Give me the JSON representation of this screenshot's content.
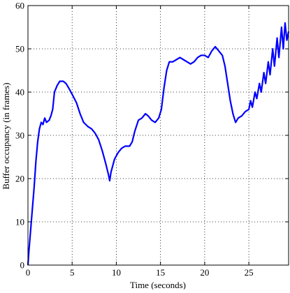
{
  "chart_data": {
    "type": "line",
    "title": "",
    "xlabel": "Time (seconds)",
    "ylabel": "Buffer occupancy (in frames)",
    "xlim": [
      0,
      29.5
    ],
    "ylim": [
      0,
      60
    ],
    "x_ticks": [
      0,
      5,
      10,
      15,
      20,
      25
    ],
    "y_ticks": [
      0,
      10,
      20,
      30,
      40,
      50,
      60
    ],
    "grid": true,
    "grid_style": "dotted",
    "series": [
      {
        "color": "#0000ff",
        "points": [
          [
            0.0,
            0.0
          ],
          [
            0.1,
            3.0
          ],
          [
            0.3,
            8.0
          ],
          [
            0.5,
            13.0
          ],
          [
            0.7,
            18.0
          ],
          [
            0.9,
            24.0
          ],
          [
            1.1,
            28.5
          ],
          [
            1.3,
            31.5
          ],
          [
            1.5,
            33.0
          ],
          [
            1.7,
            32.5
          ],
          [
            1.9,
            34.0
          ],
          [
            2.1,
            33.0
          ],
          [
            2.4,
            33.5
          ],
          [
            2.6,
            34.5
          ],
          [
            2.8,
            36.0
          ],
          [
            3.0,
            40.0
          ],
          [
            3.3,
            41.5
          ],
          [
            3.6,
            42.5
          ],
          [
            4.0,
            42.5
          ],
          [
            4.3,
            42.0
          ],
          [
            4.6,
            41.0
          ],
          [
            5.0,
            39.5
          ],
          [
            5.5,
            37.5
          ],
          [
            5.9,
            35.0
          ],
          [
            6.3,
            33.0
          ],
          [
            6.8,
            32.0
          ],
          [
            7.2,
            31.5
          ],
          [
            7.6,
            30.5
          ],
          [
            8.0,
            29.0
          ],
          [
            8.4,
            26.5
          ],
          [
            8.8,
            23.5
          ],
          [
            9.1,
            21.0
          ],
          [
            9.25,
            19.5
          ],
          [
            9.4,
            21.5
          ],
          [
            9.8,
            24.5
          ],
          [
            10.2,
            26.0
          ],
          [
            10.6,
            27.0
          ],
          [
            11.0,
            27.5
          ],
          [
            11.5,
            27.5
          ],
          [
            11.8,
            28.5
          ],
          [
            12.1,
            31.0
          ],
          [
            12.5,
            33.5
          ],
          [
            12.9,
            34.0
          ],
          [
            13.3,
            35.0
          ],
          [
            13.6,
            34.5
          ],
          [
            14.0,
            33.5
          ],
          [
            14.4,
            33.0
          ],
          [
            14.8,
            34.0
          ],
          [
            15.1,
            36.0
          ],
          [
            15.4,
            41.0
          ],
          [
            15.7,
            45.0
          ],
          [
            16.0,
            47.0
          ],
          [
            16.4,
            47.0
          ],
          [
            16.8,
            47.5
          ],
          [
            17.2,
            48.0
          ],
          [
            17.6,
            47.5
          ],
          [
            18.0,
            47.0
          ],
          [
            18.4,
            46.5
          ],
          [
            18.8,
            47.0
          ],
          [
            19.2,
            48.0
          ],
          [
            19.6,
            48.5
          ],
          [
            20.0,
            48.5
          ],
          [
            20.4,
            48.0
          ],
          [
            20.8,
            49.5
          ],
          [
            21.2,
            50.5
          ],
          [
            21.6,
            49.5
          ],
          [
            22.0,
            48.5
          ],
          [
            22.3,
            46.0
          ],
          [
            22.6,
            42.0
          ],
          [
            22.9,
            38.0
          ],
          [
            23.2,
            35.0
          ],
          [
            23.5,
            33.0
          ],
          [
            23.8,
            34.0
          ],
          [
            24.2,
            34.5
          ],
          [
            24.6,
            35.5
          ],
          [
            25.0,
            36.0
          ],
          [
            25.2,
            38.0
          ],
          [
            25.4,
            36.5
          ],
          [
            25.7,
            40.0
          ],
          [
            25.9,
            38.5
          ],
          [
            26.2,
            42.0
          ],
          [
            26.4,
            40.0
          ],
          [
            26.7,
            44.5
          ],
          [
            26.9,
            42.0
          ],
          [
            27.2,
            47.0
          ],
          [
            27.4,
            44.0
          ],
          [
            27.7,
            50.0
          ],
          [
            27.9,
            46.0
          ],
          [
            28.2,
            52.5
          ],
          [
            28.4,
            48.0
          ],
          [
            28.7,
            55.0
          ],
          [
            28.9,
            50.0
          ],
          [
            29.1,
            56.0
          ],
          [
            29.3,
            52.0
          ],
          [
            29.5,
            54.0
          ]
        ]
      }
    ]
  }
}
